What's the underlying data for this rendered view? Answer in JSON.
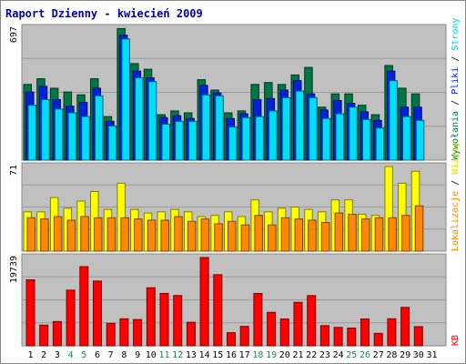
{
  "chart_data": [
    {
      "type": "bar",
      "title": "Raport Dzienny -  kwiecień 2009",
      "ymax_label": "697",
      "ylim": [
        0,
        697
      ],
      "series_names": [
        "Wywołania",
        "Pliki",
        "Strony"
      ],
      "series_colors": [
        "#007744",
        "#0022dd",
        "#00ddff"
      ],
      "x": [
        1,
        2,
        3,
        4,
        5,
        6,
        7,
        8,
        9,
        10,
        11,
        12,
        13,
        14,
        15,
        16,
        17,
        18,
        19,
        20,
        21,
        22,
        23,
        24,
        25,
        26,
        27,
        28,
        29,
        30,
        31
      ],
      "series": [
        {
          "name": "Wywołania",
          "values": [
            400,
            430,
            380,
            360,
            345,
            430,
            230,
            695,
            510,
            480,
            240,
            260,
            250,
            425,
            370,
            250,
            260,
            400,
            410,
            400,
            450,
            490,
            280,
            350,
            350,
            290,
            240,
            500,
            380,
            350,
            0
          ]
        },
        {
          "name": "Pliki",
          "values": [
            360,
            390,
            320,
            285,
            305,
            380,
            205,
            660,
            470,
            435,
            225,
            235,
            220,
            395,
            355,
            220,
            245,
            320,
            325,
            370,
            420,
            350,
            265,
            315,
            300,
            255,
            210,
            470,
            280,
            280,
            0
          ]
        },
        {
          "name": "Strony",
          "values": [
            290,
            320,
            270,
            250,
            230,
            340,
            180,
            640,
            435,
            415,
            190,
            205,
            205,
            345,
            340,
            175,
            225,
            230,
            260,
            330,
            365,
            330,
            220,
            245,
            280,
            215,
            170,
            420,
            230,
            210,
            0
          ]
        }
      ]
    },
    {
      "type": "bar",
      "ymax_label": "71",
      "ylim": [
        0,
        71
      ],
      "series_names": [
        "Lokalizacje",
        "Wizyty"
      ],
      "series_colors": [
        "#ff8800",
        "#ffff00"
      ],
      "x": [
        1,
        2,
        3,
        4,
        5,
        6,
        7,
        8,
        9,
        10,
        11,
        12,
        13,
        14,
        15,
        16,
        17,
        18,
        19,
        20,
        21,
        22,
        23,
        24,
        25,
        26,
        27,
        28,
        29,
        30,
        31
      ],
      "series": [
        {
          "name": "Wizyty",
          "values": [
            33,
            33,
            45,
            36,
            42,
            50,
            35,
            57,
            35,
            32,
            33,
            35,
            33,
            29,
            30,
            33,
            29,
            43,
            33,
            36,
            37,
            35,
            33,
            43,
            43,
            31,
            30,
            71,
            57,
            67,
            0
          ]
        },
        {
          "name": "Lokalizacje",
          "values": [
            28,
            27,
            29,
            26,
            29,
            28,
            28,
            28,
            27,
            26,
            26,
            29,
            25,
            27,
            23,
            25,
            22,
            30,
            22,
            28,
            27,
            26,
            24,
            32,
            31,
            27,
            28,
            28,
            30,
            38,
            0
          ]
        }
      ]
    },
    {
      "type": "bar",
      "ymax_label": "19739",
      "ylim": [
        0,
        19739
      ],
      "series_names": [
        "KB"
      ],
      "series_colors": [
        "#ff0000"
      ],
      "x": [
        1,
        2,
        3,
        4,
        5,
        6,
        7,
        8,
        9,
        10,
        11,
        12,
        13,
        14,
        15,
        16,
        17,
        18,
        19,
        20,
        21,
        22,
        23,
        24,
        25,
        26,
        27,
        28,
        29,
        30,
        31
      ],
      "series": [
        {
          "name": "KB",
          "values": [
            14750,
            4620,
            5420,
            12450,
            17700,
            14470,
            5020,
            6040,
            5870,
            12980,
            11710,
            11240,
            5260,
            19739,
            15900,
            2930,
            4340,
            11700,
            7480,
            5990,
            9720,
            11230,
            4500,
            4120,
            3970,
            6000,
            2790,
            6040,
            8590,
            4280,
            0
          ]
        }
      ]
    }
  ],
  "x_tick_colors": [
    "#000000",
    "#000000",
    "#000000",
    "#2a7f4a",
    "#2a7f4a",
    "#000000",
    "#000000",
    "#000000",
    "#000000",
    "#000000",
    "#2a7f4a",
    "#2a7f4a",
    "#000000",
    "#000000",
    "#000000",
    "#000000",
    "#000000",
    "#2a7f4a",
    "#2a7f4a",
    "#000000",
    "#000000",
    "#000000",
    "#000000",
    "#000000",
    "#2a7f4a",
    "#2a7f4a",
    "#000000",
    "#000000",
    "#000000",
    "#000000",
    "#000000"
  ],
  "right_labels": {
    "top": [
      "Wywołania",
      "Pliki",
      "Strony"
    ],
    "middle": [
      "Lokalizacje",
      "Wizyty"
    ],
    "bottom": [
      "KB"
    ],
    "separator": " / "
  },
  "colors": {
    "panel_bg": "#c0c0c0",
    "frame": "#888888",
    "grid": "#9a9a9a",
    "title": "#0000aa"
  }
}
